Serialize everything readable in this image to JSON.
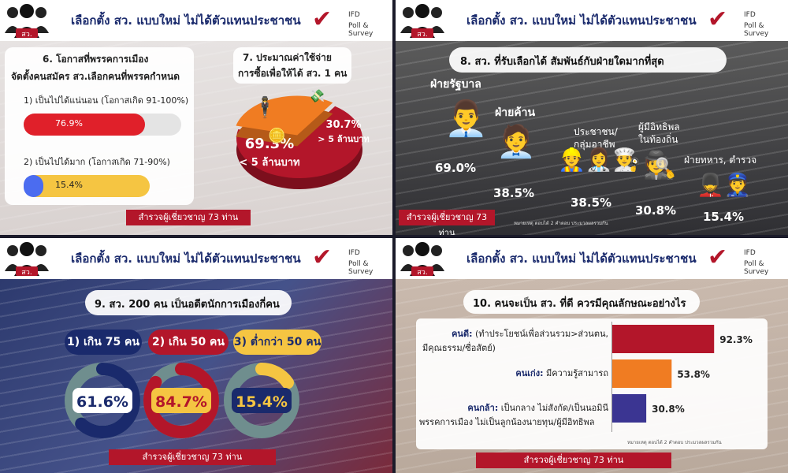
{
  "header": {
    "title": "เลือกตั้ง สว. แบบใหม่ ไม่ได้ตัวแทนประชาชน",
    "logo_label": "สว.",
    "brand_line1": "IFD",
    "brand_line2": "Poll & Survey"
  },
  "footer_note": "สำรวจผู้เชี่ยวชาญ 73 ท่าน",
  "source_note": "หมายเหตุ ตอบได้ 2 คำตอบ ประมวลผลรวมกัน",
  "panel1": {
    "q6_title": "6. โอกาสที่พรรคการเมือง",
    "q6_subtitle": "จัดตั้งคนสมัคร สว.เลือกคนที่พรรคกำหนด",
    "q7_title": "7. ประมาณค่าใช้จ่าย",
    "q7_subtitle": "การซื้อเพื่อให้ได้ สว. 1 คน"
  },
  "panel2": {
    "title": "8. สว. ที่รับเลือกได้ สัมพันธ์กับฝ่ายใดมากที่สุด",
    "group_labels": [
      "ฝ่ายรัฐบาล",
      "ฝ่ายค้าน",
      "ประชาชน/",
      "กลุ่มอาชีพ",
      "ผู้มีอิทธิพล",
      "ในท้องถิ่น",
      "ฝ่ายทหาร, ตำรวจ"
    ]
  },
  "panel3": {
    "title": "9. สว. 200 คน เป็นอดีตนักการเมืองกี่คน"
  },
  "panel4": {
    "title": "10. คนจะเป็น สว. ที่ดี ควรมีคุณลักษณะอย่างไร",
    "items": [
      {
        "key": "คนดี:",
        "line1": " (ทำประโยชน์เพื่อส่วนรวม>ส่วนตน,",
        "line2": "มีคุณธรรม/ซื่อสัตย์)"
      },
      {
        "key": "คนเก่ง:",
        "line1": " มีความรู้สามารถ",
        "line2": ""
      },
      {
        "key": "คนกล้า:",
        "line1": " เป็นกลาง ไม่สังกัด/เป็นนอมินี",
        "line2": "พรรคการเมือง ไม่เป็นลูกน้องนายทุน/ผู้มีอิทธิพล"
      }
    ]
  },
  "colors": {
    "brand_red": "#b3162a",
    "navy": "#1a2a6c",
    "orange": "#f07c22",
    "purple": "#3b3592",
    "yellow": "#f5c542",
    "blue": "#4b6cf0",
    "teal_ring": "#6f8e8e"
  },
  "chart_data": [
    {
      "type": "bar",
      "title": "6. โอกาสที่พรรคการเมือง จัดตั้งคนสมัคร สว.เลือกคนที่พรรคกำหนด",
      "categories": [
        "1) เป็นไปได้แน่นอน (โอกาสเกิด 91-100%)",
        "2) เป็นไปได้มาก (โอกาสเกิด 71-90%)"
      ],
      "values": [
        76.9,
        15.4
      ],
      "value_labels": [
        "76.9%",
        "15.4%"
      ],
      "ylim": [
        0,
        100
      ]
    },
    {
      "type": "pie",
      "title": "7. ประมาณค่าใช้จ่าย การซื้อเพื่อให้ได้ สว. 1 คน",
      "categories": [
        "< 5 ล้านบาท",
        "> 5 ล้านบาท"
      ],
      "values": [
        69.3,
        30.7
      ],
      "value_labels": [
        "69.3%",
        "30.7%"
      ]
    },
    {
      "type": "bar",
      "title": "8. สว. ที่รับเลือกได้ สัมพันธ์กับฝ่ายใดมากที่สุด",
      "categories": [
        "ฝ่ายรัฐบาล",
        "ฝ่ายค้าน",
        "ประชาชน/กลุ่มอาชีพ",
        "ผู้มีอิทธิพลในท้องถิ่น",
        "ฝ่ายทหาร, ตำรวจ"
      ],
      "values": [
        69.0,
        38.5,
        38.5,
        30.8,
        15.4
      ],
      "value_labels": [
        "69.0%",
        "38.5%",
        "38.5%",
        "30.8%",
        "15.4%"
      ]
    },
    {
      "type": "pie",
      "title": "9. สว. 200 คน เป็นอดีตนักการเมืองกี่คน",
      "categories": [
        "1) เกิน 75 คน",
        "2) เกิน 50 คน",
        "3) ต่ำกว่า 50 คน"
      ],
      "values": [
        61.6,
        84.7,
        15.4
      ],
      "value_labels": [
        "61.6%",
        "84.7%",
        "15.4%"
      ]
    },
    {
      "type": "bar",
      "title": "10. คนจะเป็น สว. ที่ดี ควรมีคุณลักษณะอย่างไร",
      "categories": [
        "คนดี",
        "คนเก่ง",
        "คนกล้า"
      ],
      "values": [
        92.3,
        53.8,
        30.8
      ],
      "value_labels": [
        "92.3%",
        "53.8%",
        "30.8%"
      ],
      "ylim": [
        0,
        100
      ]
    }
  ]
}
